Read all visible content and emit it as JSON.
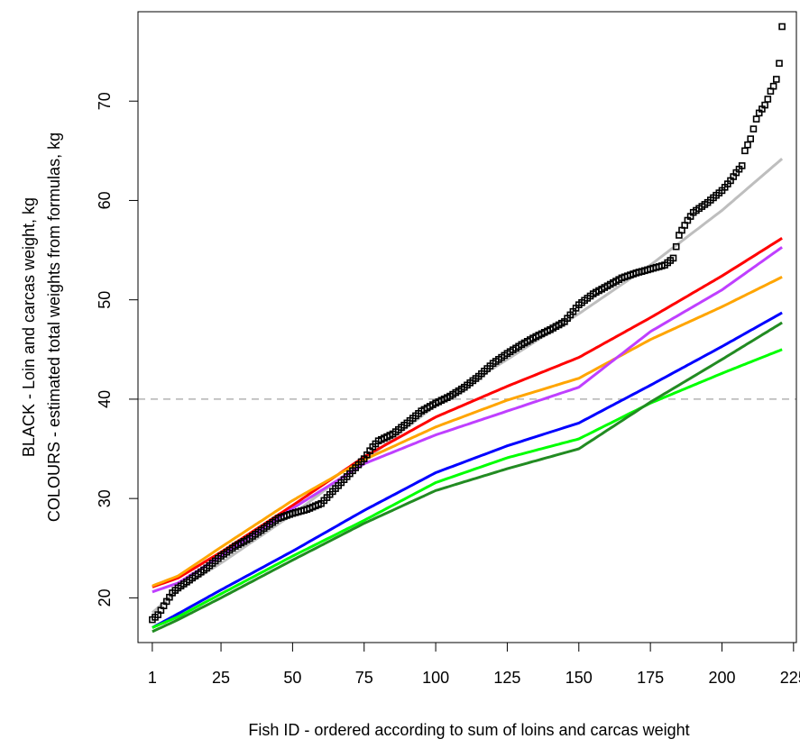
{
  "chart_data": {
    "type": "line",
    "title": "",
    "xlabel": "Fish ID - ordered according to sum of loins and carcas weight",
    "ylabel_line1": "BLACK - Loin and carcas weight, kg",
    "ylabel_line2": "COLOURS - estimated total weights from formulas, kg",
    "xlim": [
      -4,
      226
    ],
    "ylim": [
      15.5,
      79
    ],
    "x_ticks": [
      1,
      25,
      50,
      75,
      100,
      125,
      150,
      175,
      200,
      225
    ],
    "y_ticks": [
      20,
      30,
      40,
      50,
      60,
      70
    ],
    "reference_line": {
      "y": 40,
      "color": "#b3b3b3",
      "style": "dashed"
    },
    "observed": {
      "color": "#000000",
      "marker": "square",
      "anchors_x": [
        1,
        3,
        5,
        8,
        10,
        15,
        20,
        25,
        30,
        35,
        40,
        45,
        50,
        55,
        60,
        65,
        70,
        75,
        78,
        80,
        85,
        90,
        95,
        100,
        105,
        110,
        115,
        120,
        125,
        130,
        135,
        140,
        145,
        150,
        155,
        160,
        165,
        170,
        175,
        180,
        183,
        185,
        188,
        190,
        192,
        195,
        200,
        203,
        205,
        207,
        208,
        210,
        212,
        213,
        215,
        216,
        217,
        218,
        219,
        220,
        221
      ],
      "anchors_y": [
        17.8,
        18.3,
        19.2,
        20.5,
        21,
        22,
        23,
        24.2,
        25.2,
        26,
        27,
        28,
        28.5,
        28.9,
        29.5,
        31,
        32.5,
        34,
        35.2,
        35.8,
        36.5,
        37.6,
        38.8,
        39.6,
        40.3,
        41.2,
        42.3,
        43.6,
        44.6,
        45.5,
        46.3,
        47,
        47.8,
        49.5,
        50.6,
        51.4,
        52.2,
        52.7,
        53.1,
        53.5,
        54.2,
        56.5,
        58,
        58.8,
        59.2,
        59.8,
        61,
        62,
        62.8,
        63.5,
        65,
        66.2,
        68.2,
        68.8,
        69.6,
        70.2,
        71,
        71.5,
        72.2,
        73.8,
        77.5
      ]
    },
    "x": [
      1,
      10,
      25,
      50,
      75,
      100,
      125,
      150,
      175,
      200,
      221
    ],
    "series": [
      {
        "color": "#bebebe",
        "values": [
          18.5,
          20.8,
          23.5,
          28.4,
          33.8,
          39.4,
          44.0,
          48.6,
          53.5,
          59.0,
          64.2
        ]
      },
      {
        "color": "#ff0000",
        "values": [
          21.1,
          22.0,
          24.6,
          29.3,
          34.2,
          38.2,
          41.3,
          44.2,
          48.2,
          52.4,
          56.2
        ]
      },
      {
        "color": "#ffa500",
        "values": [
          21.2,
          22.2,
          25.1,
          29.8,
          33.9,
          37.2,
          39.9,
          42.1,
          46.0,
          49.3,
          52.3
        ]
      },
      {
        "color": "#bf3fff",
        "values": [
          20.6,
          21.5,
          24.2,
          29.0,
          33.5,
          36.4,
          38.8,
          41.2,
          46.8,
          51.0,
          55.3
        ]
      },
      {
        "color": "#0000ff",
        "values": [
          17.0,
          18.4,
          20.8,
          24.7,
          28.8,
          32.6,
          35.3,
          37.6,
          41.4,
          45.3,
          48.7
        ]
      },
      {
        "color": "#00ff00",
        "values": [
          17.0,
          18.1,
          20.4,
          24.2,
          27.8,
          31.6,
          34.1,
          36.0,
          39.6,
          42.6,
          45.0
        ]
      },
      {
        "color": "#228b22",
        "values": [
          16.6,
          17.8,
          20.0,
          23.8,
          27.5,
          30.8,
          33.0,
          35.0,
          39.7,
          44.0,
          47.7
        ]
      }
    ]
  }
}
